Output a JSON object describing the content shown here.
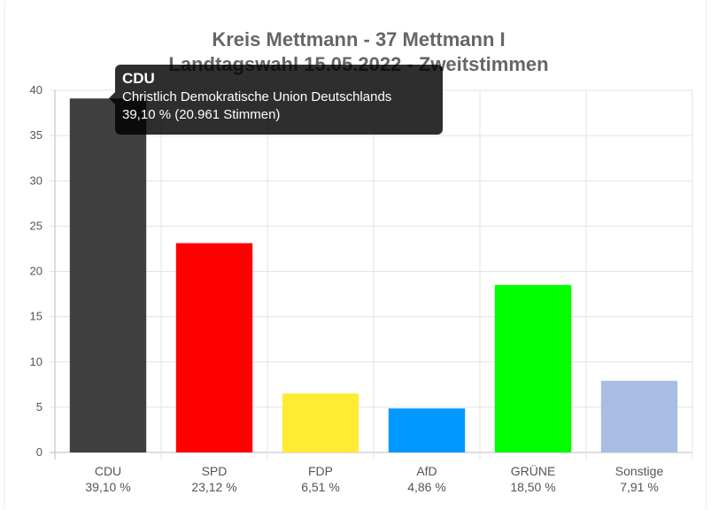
{
  "chart_data": {
    "type": "bar",
    "title": [
      "Kreis Mettmann - 37 Mettmann I",
      "Landtagswahl 15.05.2022  - Zweitstimmen"
    ],
    "categories": [
      "CDU",
      "SPD",
      "FDP",
      "AfD",
      "GRÜNE",
      "Sonstige"
    ],
    "value_labels": [
      "39,10 %",
      "23,12 %",
      "6,51 %",
      "4,86 %",
      "18,50 %",
      "7,91 %"
    ],
    "values": [
      39.1,
      23.12,
      6.51,
      4.86,
      18.5,
      7.91
    ],
    "colors": [
      "#404040",
      "#ff0000",
      "#ffeb33",
      "#0099ff",
      "#00ff00",
      "#a8bde3"
    ],
    "ylim": [
      0,
      40
    ],
    "yticks": [
      0,
      5,
      10,
      15,
      20,
      25,
      30,
      35,
      40
    ],
    "grid": true,
    "tooltip": {
      "title": "CDU",
      "line1": "Christlich Demokratische Union Deutschlands",
      "line2": "39,10 % (20.961 Stimmen)"
    }
  }
}
